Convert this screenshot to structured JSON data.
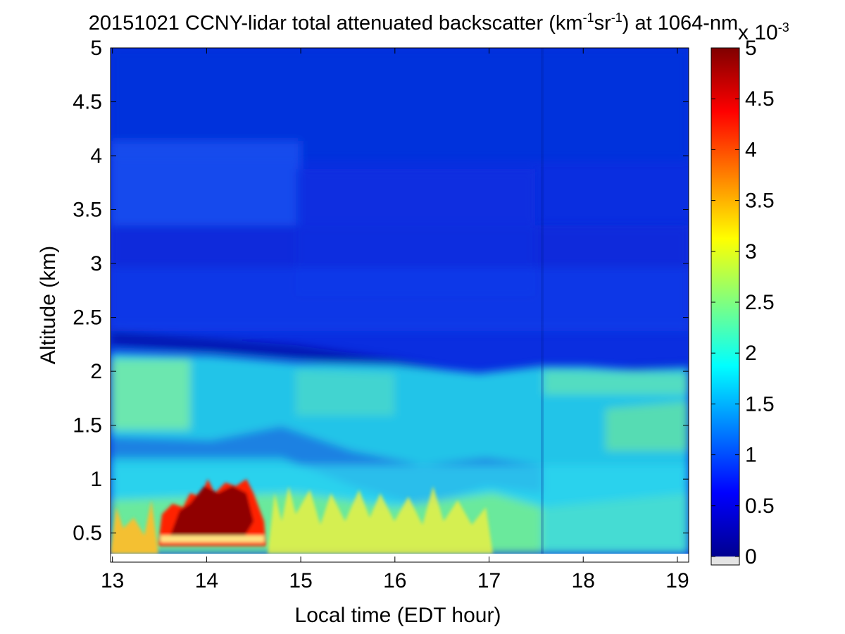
{
  "chart_data": {
    "type": "heatmap",
    "title": {
      "main": "20151021 CCNY-lidar total attenuated backscatter (km",
      "sup1": "-1",
      "mid": "sr",
      "sup2": "-1",
      "tail": ") at 1064-nm"
    },
    "xlabel": "Local time (EDT hour)",
    "ylabel": "Altitude (km)",
    "xlim": [
      12.98,
      19.12
    ],
    "ylim": [
      0.23,
      5.0
    ],
    "xticks": [
      "13",
      "14",
      "15",
      "16",
      "17",
      "18",
      "19"
    ],
    "yticks": [
      "0.5",
      "1",
      "1.5",
      "2",
      "2.5",
      "3",
      "3.5",
      "4",
      "4.5",
      "5"
    ],
    "colorbar": {
      "range": [
        0,
        5
      ],
      "ticks": [
        "0",
        "0.5",
        "1",
        "1.5",
        "2",
        "2.5",
        "3",
        "3.5",
        "4",
        "4.5",
        "5"
      ],
      "multiplier": {
        "base": "x 10",
        "exp": "-3"
      },
      "colormap": "jet"
    },
    "grid": false,
    "data_altitude_start_km": 0.3,
    "features": [
      {
        "label": "residual layer top",
        "time": [
          13.0,
          19.0
        ],
        "altitude_km": [
          2.3,
          2.0
        ],
        "value": 2.0
      },
      {
        "label": "boundary layer plumes",
        "time": [
          13.5,
          14.6
        ],
        "altitude_km": [
          0.45,
          1.0
        ],
        "value": 5.0
      },
      {
        "label": "convective plumes",
        "time": [
          14.6,
          17.0
        ],
        "altitude_km": [
          0.3,
          0.9
        ],
        "value": 2.8
      },
      {
        "label": "free troposphere",
        "time": [
          13.0,
          19.0
        ],
        "altitude_km": [
          2.3,
          5.0
        ],
        "value": 0.4
      }
    ]
  }
}
